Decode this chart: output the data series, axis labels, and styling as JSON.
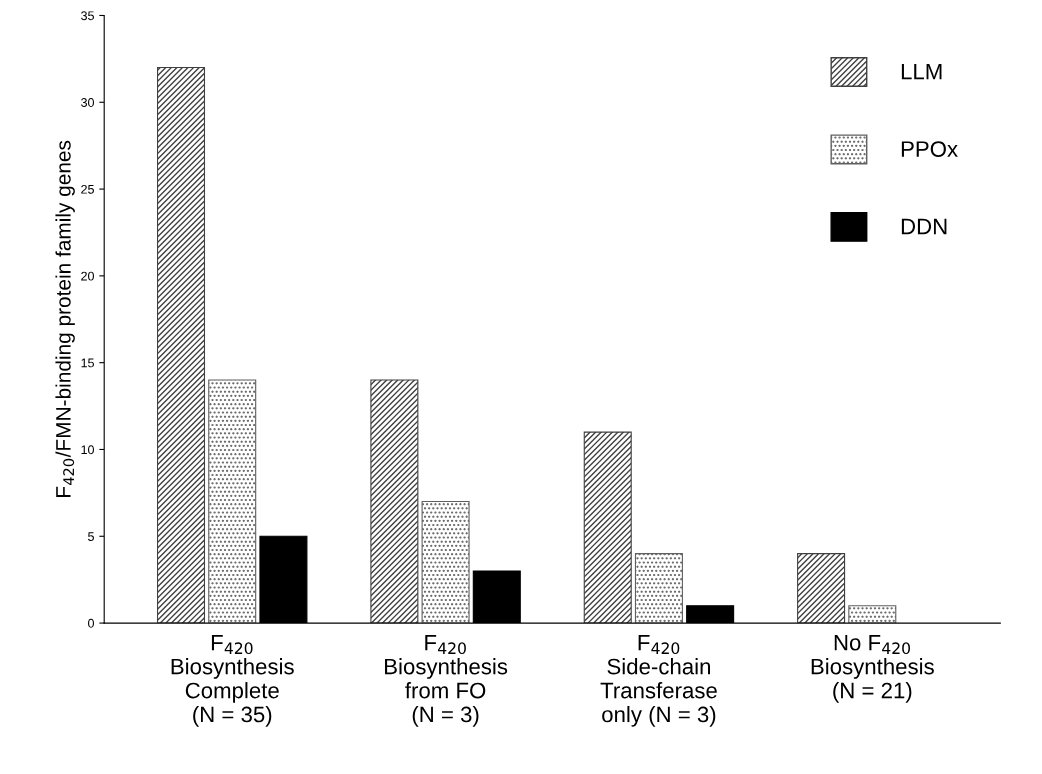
{
  "chart_data": {
    "type": "bar",
    "ylabel": "F$_{420}$/FMN-binding protein family genes",
    "categories": [
      "F$_{420}$\nBiosynthesis\nComplete\n(N = 35)",
      "F$_{420}$\nBiosynthesis\nfrom FO\n(N = 3)",
      "F$_{420}$\nSide-chain\nTransferase\nonly (N = 3)",
      "No F$_{420}$\nBiosynthesis\n(N = 21)"
    ],
    "series": [
      {
        "name": "LLM",
        "color": "#404040",
        "values": [
          32,
          14,
          11,
          4
        ]
      },
      {
        "name": "PPOx",
        "color": "#606060",
        "values": [
          14,
          7,
          4,
          1
        ]
      },
      {
        "name": "DDN",
        "color": "#000000",
        "values": [
          5,
          3,
          1,
          null
        ]
      }
    ],
    "ylim": [
      0,
      35
    ],
    "yticks": [
      0,
      5,
      10,
      15,
      20,
      25,
      30,
      35
    ],
    "grid": false,
    "legend": "top right"
  }
}
